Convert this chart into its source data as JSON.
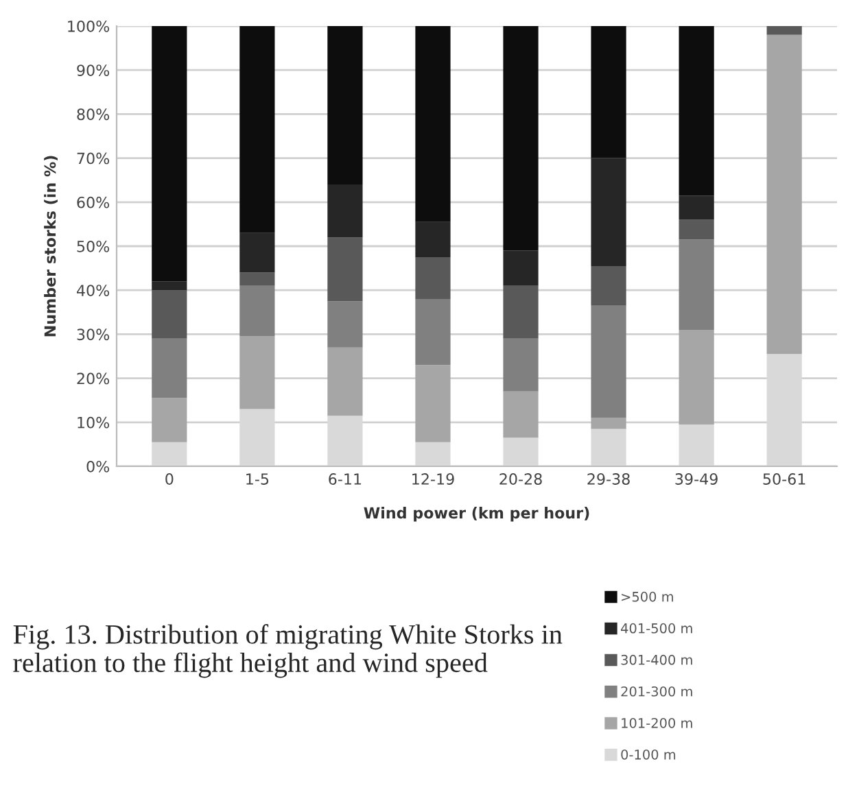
{
  "chart_data": {
    "type": "bar",
    "stacked": true,
    "xlabel": "Wind power (km per hour)",
    "ylabel": "Number storks (in %)",
    "categories": [
      "0",
      "1-5",
      "6-11",
      "12-19",
      "20-28",
      "29-38",
      "39-49",
      "50-61"
    ],
    "series": [
      {
        "name": "0-100 m",
        "color": "#d9d9d9",
        "values": [
          5.5,
          13,
          11.5,
          5.5,
          6.5,
          8.5,
          9.5,
          25.5
        ]
      },
      {
        "name": "101-200 m",
        "color": "#a6a6a6",
        "values": [
          10,
          16.5,
          15.5,
          17.5,
          10.5,
          2.5,
          21.5,
          72.5
        ]
      },
      {
        "name": "201-300 m",
        "color": "#808080",
        "values": [
          13.5,
          11.5,
          10.5,
          15,
          12,
          25.5,
          20.5,
          0
        ]
      },
      {
        "name": "301-400 m",
        "color": "#595959",
        "values": [
          11,
          3,
          14.5,
          9.5,
          12,
          9,
          4.5,
          2
        ]
      },
      {
        "name": "401-500 m",
        "color": "#262626",
        "values": [
          2,
          9,
          12,
          8,
          8,
          24.5,
          5.5,
          0
        ]
      },
      {
        "name": ">500 m",
        "color": "#0d0d0d",
        "values": [
          58,
          47,
          36,
          44.5,
          51,
          30,
          38.5,
          0
        ]
      }
    ],
    "ylim": [
      0,
      100
    ],
    "yticks": [
      {
        "value": 0,
        "label": "0%"
      },
      {
        "value": 10,
        "label": "10%"
      },
      {
        "value": 20,
        "label": "20%"
      },
      {
        "value": 30,
        "label": "30%"
      },
      {
        "value": 40,
        "label": "40%"
      },
      {
        "value": 50,
        "label": "50%"
      },
      {
        "value": 60,
        "label": "60%"
      },
      {
        "value": 70,
        "label": "70%"
      },
      {
        "value": 80,
        "label": "80%"
      },
      {
        "value": 90,
        "label": "90%"
      },
      {
        "value": 100,
        "label": "100%"
      }
    ],
    "grid": "y",
    "legend": "bottom right",
    "annotations": [
      "Fig. 13. Distribution of migrating White Storks in relation to the flight height and wind speed"
    ]
  }
}
